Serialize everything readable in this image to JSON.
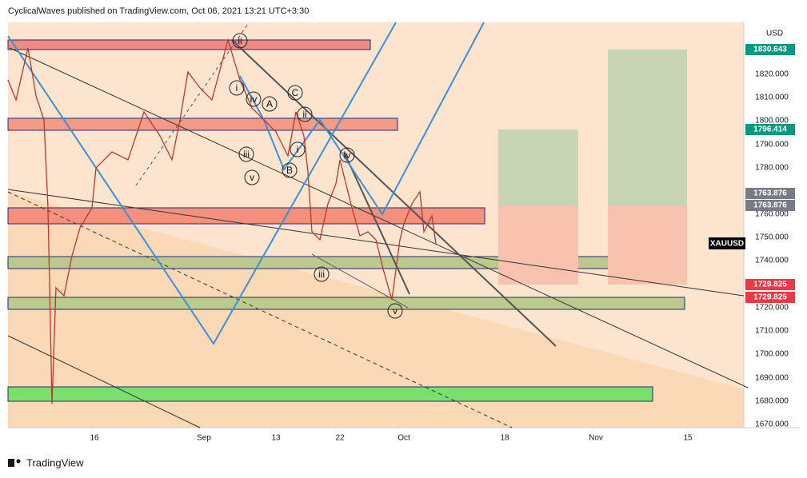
{
  "header": "CyclicalWaves published on TradingView.com, Oct 06, 2021 13:21 UTC+3:30",
  "currency": "USD",
  "price_axis": [
    "1820.000",
    "1810.000",
    "1800.000",
    "1790.000",
    "1780.000",
    "1760.000",
    "1750.000",
    "1740.000",
    "1720.000",
    "1710.000",
    "1700.000",
    "1690.000",
    "1680.000",
    "1670.000"
  ],
  "price_tags": [
    "1830.643",
    "1796.414",
    "1763.876",
    "1763.876",
    "1729.825",
    "1729.825"
  ],
  "symbol": "XAUUSD",
  "time_axis": [
    "16",
    "Sep",
    "13",
    "22",
    "Oct",
    "18",
    "Nov",
    "15"
  ],
  "waves": [
    "ii",
    "i",
    "iv",
    "A",
    "C",
    "ii",
    "i",
    "iii",
    "v",
    "B",
    "iv",
    "iii",
    "v"
  ],
  "footer": "TradingView"
}
